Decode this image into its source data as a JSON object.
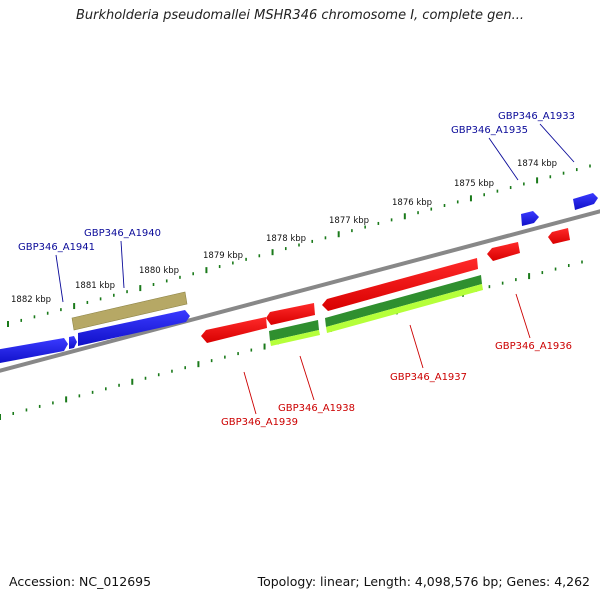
{
  "title": "Burkholderia pseudomallei MSHR346 chromosome I, complete gen...",
  "footer": {
    "accession": "Accession: NC_012695",
    "stats": "Topology: linear; Length: 4,098,576 bp; Genes: 4,262"
  },
  "ruler_ticks": [
    {
      "label": "1882 kbp",
      "kbp": 1882
    },
    {
      "label": "1881 kbp",
      "kbp": 1881
    },
    {
      "label": "1880 kbp",
      "kbp": 1880
    },
    {
      "label": "1879 kbp",
      "kbp": 1879
    },
    {
      "label": "1878 kbp",
      "kbp": 1878
    },
    {
      "label": "1877 kbp",
      "kbp": 1877
    },
    {
      "label": "1876 kbp",
      "kbp": 1876
    },
    {
      "label": "1875 kbp",
      "kbp": 1875
    },
    {
      "label": "1874 kbp",
      "kbp": 1874
    }
  ],
  "gene_labels": [
    {
      "id": "g1941",
      "text": "GBP346_A1941",
      "strand": "forward"
    },
    {
      "id": "g1940",
      "text": "GBP346_A1940",
      "strand": "forward"
    },
    {
      "id": "g1935",
      "text": "GBP346_A1935",
      "strand": "forward"
    },
    {
      "id": "g1933",
      "text": "GBP346_A1933",
      "strand": "forward"
    },
    {
      "id": "g1939",
      "text": "GBP346_A1939",
      "strand": "reverse"
    },
    {
      "id": "g1938",
      "text": "GBP346_A1938",
      "strand": "reverse"
    },
    {
      "id": "g1937",
      "text": "GBP346_A1937",
      "strand": "reverse"
    },
    {
      "id": "g1936",
      "text": "GBP346_A1936",
      "strand": "reverse"
    }
  ],
  "colors": {
    "forward_gene": "#1a1aee",
    "reverse_gene": "#ee1111",
    "forward_label": "#0a0a99",
    "reverse_label": "#cc0000",
    "backbone": "#888888",
    "tick": "#1a7a1a",
    "olive_feature": "#b0a060",
    "green_feature": "#2e8b2e",
    "lime_feature": "#aaff33"
  }
}
